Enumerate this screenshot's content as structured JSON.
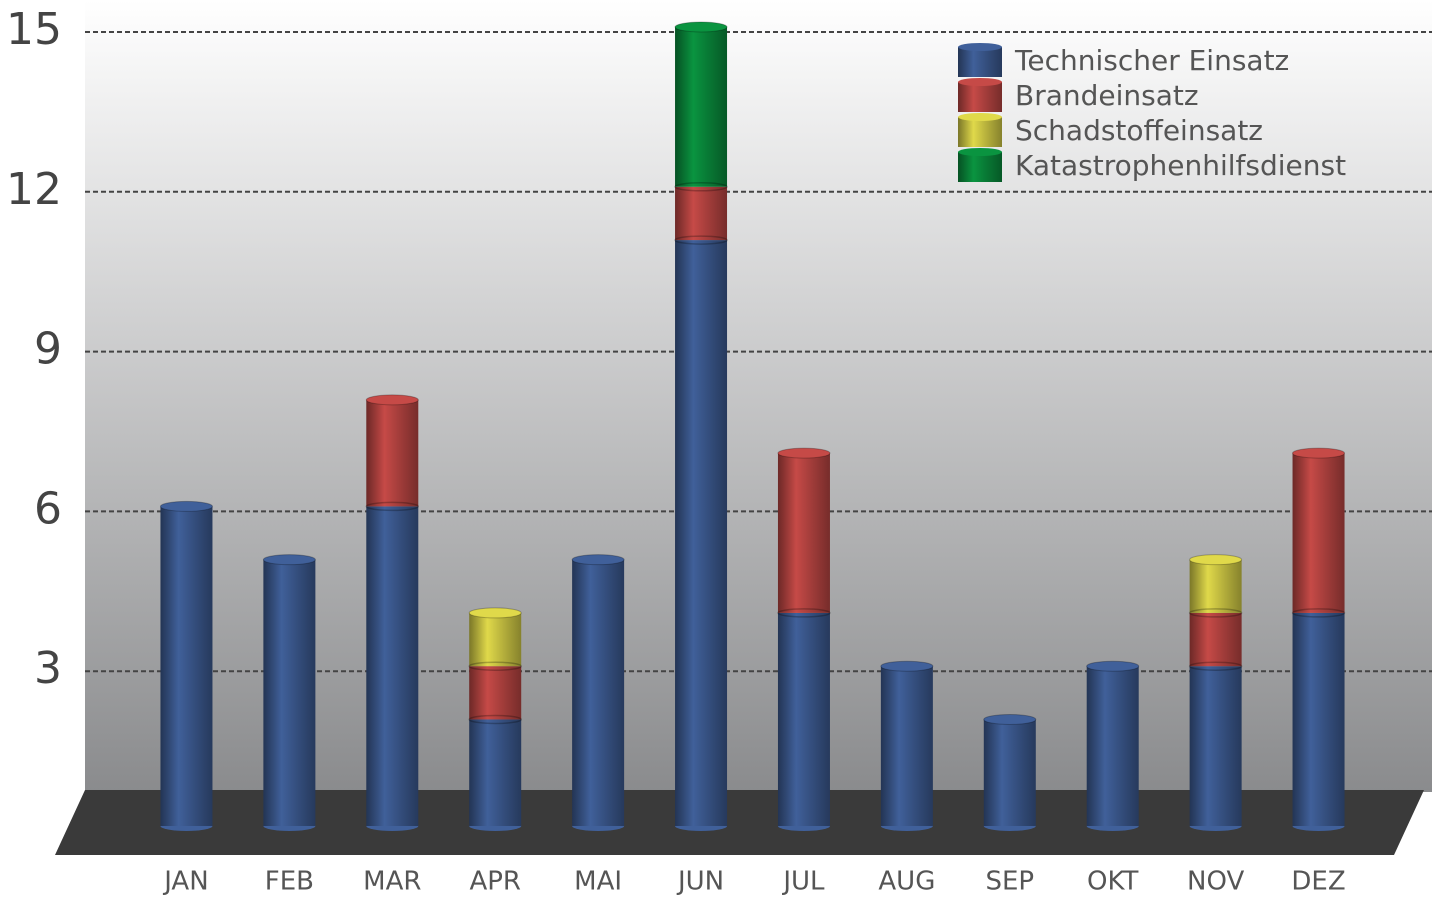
{
  "chart_data": {
    "type": "stacked_bar",
    "categories": [
      "JAN",
      "FEB",
      "MAR",
      "APR",
      "MAI",
      "JUN",
      "JUL",
      "AUG",
      "SEP",
      "OKT",
      "NOV",
      "DEZ"
    ],
    "series": [
      {
        "name": "Technischer Einsatz",
        "color": "#40609a",
        "values": [
          6,
          5,
          6,
          2,
          5,
          11,
          4,
          3,
          2,
          3,
          3,
          4
        ]
      },
      {
        "name": "Brandeinsatz",
        "color": "#c64a47",
        "values": [
          0,
          0,
          2,
          1,
          0,
          1,
          3,
          0,
          0,
          0,
          1,
          3
        ]
      },
      {
        "name": "Schadstoffeinsatz",
        "color": "#e0d94a",
        "values": [
          0,
          0,
          0,
          1,
          0,
          0,
          0,
          0,
          0,
          0,
          1,
          0
        ]
      },
      {
        "name": "Katastrophenhilfsdienst",
        "color": "#0a9440",
        "values": [
          0,
          0,
          0,
          0,
          0,
          3,
          0,
          0,
          0,
          0,
          0,
          0
        ]
      }
    ],
    "ylim": [
      0,
      15
    ],
    "yticks": [
      3,
      6,
      9,
      12,
      15
    ],
    "grid": true,
    "legend": "top-right"
  }
}
